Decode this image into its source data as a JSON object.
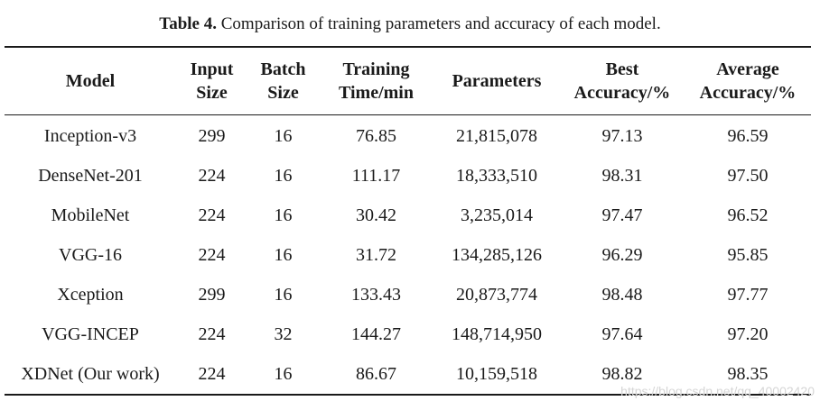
{
  "caption": {
    "label": "Table 4.",
    "text": "Comparison of training parameters and accuracy of each model."
  },
  "table": {
    "headers": [
      [
        "Model"
      ],
      [
        "Input",
        "Size"
      ],
      [
        "Batch",
        "Size"
      ],
      [
        "Training",
        "Time/min"
      ],
      [
        "Parameters"
      ],
      [
        "Best",
        "Accuracy/%"
      ],
      [
        "Average",
        "Accuracy/%"
      ]
    ],
    "rows": [
      [
        "Inception-v3",
        "299",
        "16",
        "76.85",
        "21,815,078",
        "97.13",
        "96.59"
      ],
      [
        "DenseNet-201",
        "224",
        "16",
        "111.17",
        "18,333,510",
        "98.31",
        "97.50"
      ],
      [
        "MobileNet",
        "224",
        "16",
        "30.42",
        "3,235,014",
        "97.47",
        "96.52"
      ],
      [
        "VGG-16",
        "224",
        "16",
        "31.72",
        "134,285,126",
        "96.29",
        "95.85"
      ],
      [
        "Xception",
        "299",
        "16",
        "133.43",
        "20,873,774",
        "98.48",
        "97.77"
      ],
      [
        "VGG-INCEP",
        "224",
        "32",
        "144.27",
        "148,714,950",
        "97.64",
        "97.20"
      ],
      [
        "XDNet (Our work)",
        "224",
        "16",
        "86.67",
        "10,159,518",
        "98.82",
        "98.35"
      ]
    ]
  },
  "watermark": "https://blog.csdn.net/qq_40002420"
}
